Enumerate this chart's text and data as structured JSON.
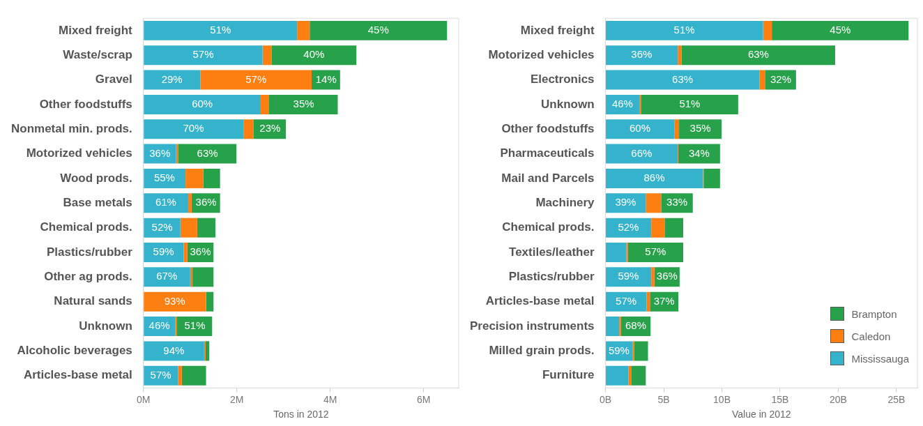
{
  "chart_data": [
    {
      "type": "bar",
      "orientation": "horizontal",
      "stacked": true,
      "xlabel": "Tons in 2012",
      "categories": [
        "Mixed freight",
        "Waste/scrap",
        "Gravel",
        "Other foodstuffs",
        "Nonmetal min. prods.",
        "Motorized vehicles",
        "Wood prods.",
        "Base metals",
        "Chemical prods.",
        "Plastics/rubber",
        "Other ag prods.",
        "Natural sands",
        "Unknown",
        "Alcoholic beverages",
        "Articles-base metal"
      ],
      "series": [
        {
          "color": "#36b3cc",
          "values": [
            3.29,
            2.55,
            1.22,
            2.51,
            2.14,
            0.7,
            0.9,
            0.96,
            0.79,
            0.86,
            1.0,
            0,
            0.68,
            1.3,
            0.74
          ]
        },
        {
          "color": "#fd7f12",
          "values": [
            0.27,
            0.19,
            2.38,
            0.18,
            0.22,
            0.04,
            0.38,
            0.07,
            0.36,
            0.08,
            0.05,
            1.34,
            0.04,
            0.03,
            0.08
          ]
        },
        {
          "color": "#27a24a",
          "values": [
            2.94,
            1.82,
            0.61,
            1.47,
            0.69,
            1.25,
            0.36,
            0.61,
            0.39,
            0.56,
            0.45,
            0.16,
            0.75,
            0.08,
            0.52
          ]
        }
      ],
      "annotations": [
        {
          "text": "51%",
          "x": 1.65,
          "y": "Mixed freight"
        },
        {
          "text": "45%",
          "x": 5.03,
          "y": "Mixed freight"
        },
        {
          "text": "57%",
          "x": 1.28,
          "y": "Waste/scrap"
        },
        {
          "text": "40%",
          "x": 3.65,
          "y": "Waste/scrap"
        },
        {
          "text": "29%",
          "x": 0.61,
          "y": "Gravel"
        },
        {
          "text": "57%",
          "x": 2.41,
          "y": "Gravel"
        },
        {
          "text": "14%",
          "x": 3.91,
          "y": "Gravel"
        },
        {
          "text": "60%",
          "x": 1.26,
          "y": "Other foodstuffs"
        },
        {
          "text": "35%",
          "x": 3.43,
          "y": "Other foodstuffs"
        },
        {
          "text": "70%",
          "x": 1.07,
          "y": "Nonmetal min. prods."
        },
        {
          "text": "23%",
          "x": 2.71,
          "y": "Nonmetal min. prods."
        },
        {
          "text": "36%",
          "x": 0.35,
          "y": "Motorized vehicles"
        },
        {
          "text": "63%",
          "x": 1.37,
          "y": "Motorized vehicles"
        },
        {
          "text": "55%",
          "x": 0.45,
          "y": "Wood prods."
        },
        {
          "text": "61%",
          "x": 0.48,
          "y": "Base metals"
        },
        {
          "text": "36%",
          "x": 1.34,
          "y": "Base metals"
        },
        {
          "text": "52%",
          "x": 0.4,
          "y": "Chemical prods."
        },
        {
          "text": "59%",
          "x": 0.43,
          "y": "Plastics/rubber"
        },
        {
          "text": "36%",
          "x": 1.22,
          "y": "Plastics/rubber"
        },
        {
          "text": "67%",
          "x": 0.5,
          "y": "Other ag prods."
        },
        {
          "text": "93%",
          "x": 0.67,
          "y": "Natural sands"
        },
        {
          "text": "46%",
          "x": 0.34,
          "y": "Unknown"
        },
        {
          "text": "51%",
          "x": 1.1,
          "y": "Unknown"
        },
        {
          "text": "94%",
          "x": 0.65,
          "y": "Alcoholic beverages"
        },
        {
          "text": "57%",
          "x": 0.37,
          "y": "Articles-base metal"
        }
      ],
      "xlim": [
        0,
        6.75
      ],
      "xticks": [
        {
          "value": 0,
          "label": "0M"
        },
        {
          "value": 2,
          "label": "2M"
        },
        {
          "value": 4,
          "label": "4M"
        },
        {
          "value": 6,
          "label": "6M"
        }
      ],
      "grid": false,
      "legend": false
    },
    {
      "type": "bar",
      "orientation": "horizontal",
      "stacked": true,
      "xlabel": "Value in 2012",
      "categories": [
        "Mixed freight",
        "Motorized vehicles",
        "Electronics",
        "Unknown",
        "Other foodstuffs",
        "Pharmaceuticals",
        "Mail and Parcels",
        "Machinery",
        "Chemical prods.",
        "Textiles/leather",
        "Plastics/rubber",
        "Articles-base metal",
        "Precision instruments",
        "Milled grain prods.",
        "Furniture"
      ],
      "series": [
        {
          "name": "Mississauga",
          "color": "#36b3cc",
          "values": [
            13.54,
            6.21,
            13.24,
            2.91,
            5.91,
            6.21,
            8.38,
            3.46,
            3.93,
            1.79,
            3.93,
            3.54,
            1.18,
            2.31,
            1.98
          ]
        },
        {
          "name": "Caledon",
          "color": "#fd7f12",
          "values": [
            0.75,
            0.33,
            0.5,
            0.17,
            0.41,
            0.05,
            0.05,
            1.32,
            1.15,
            0.13,
            0.27,
            0.28,
            0.14,
            0.14,
            0.22
          ]
        },
        {
          "name": "Brampton",
          "color": "#27a24a",
          "values": [
            11.75,
            13.19,
            2.63,
            8.32,
            3.65,
            3.58,
            1.41,
            2.72,
            1.6,
            4.76,
            2.17,
            2.44,
            2.55,
            1.2,
            1.26
          ]
        }
      ],
      "annotations": [
        {
          "text": "51%",
          "x": 6.77,
          "y": "Mixed freight"
        },
        {
          "text": "45%",
          "x": 20.17,
          "y": "Mixed freight"
        },
        {
          "text": "36%",
          "x": 3.1,
          "y": "Motorized vehicles"
        },
        {
          "text": "63%",
          "x": 13.14,
          "y": "Motorized vehicles"
        },
        {
          "text": "63%",
          "x": 6.62,
          "y": "Electronics"
        },
        {
          "text": "32%",
          "x": 15.06,
          "y": "Electronics"
        },
        {
          "text": "46%",
          "x": 1.46,
          "y": "Unknown"
        },
        {
          "text": "51%",
          "x": 7.24,
          "y": "Unknown"
        },
        {
          "text": "60%",
          "x": 2.96,
          "y": "Other foodstuffs"
        },
        {
          "text": "35%",
          "x": 8.15,
          "y": "Other foodstuffs"
        },
        {
          "text": "66%",
          "x": 3.1,
          "y": "Pharmaceuticals"
        },
        {
          "text": "34%",
          "x": 8.05,
          "y": "Pharmaceuticals"
        },
        {
          "text": "86%",
          "x": 4.19,
          "y": "Mail and Parcels"
        },
        {
          "text": "39%",
          "x": 1.73,
          "y": "Machinery"
        },
        {
          "text": "33%",
          "x": 6.14,
          "y": "Machinery"
        },
        {
          "text": "52%",
          "x": 1.97,
          "y": "Chemical prods."
        },
        {
          "text": "57%",
          "x": 4.3,
          "y": "Textiles/leather"
        },
        {
          "text": "59%",
          "x": 1.97,
          "y": "Plastics/rubber"
        },
        {
          "text": "36%",
          "x": 5.29,
          "y": "Plastics/rubber"
        },
        {
          "text": "57%",
          "x": 1.77,
          "y": "Articles-base metal"
        },
        {
          "text": "37%",
          "x": 5.04,
          "y": "Articles-base metal"
        },
        {
          "text": "68%",
          "x": 2.6,
          "y": "Precision instruments"
        },
        {
          "text": "59%",
          "x": 1.16,
          "y": "Milled grain prods."
        }
      ],
      "xlim": [
        0,
        26.8
      ],
      "xticks": [
        {
          "value": 0,
          "label": "0B"
        },
        {
          "value": 5,
          "label": "5B"
        },
        {
          "value": 10,
          "label": "10B"
        },
        {
          "value": 15,
          "label": "15B"
        },
        {
          "value": 20,
          "label": "20B"
        },
        {
          "value": 25,
          "label": "25B"
        }
      ],
      "grid": false,
      "legend": "bottom right"
    }
  ]
}
